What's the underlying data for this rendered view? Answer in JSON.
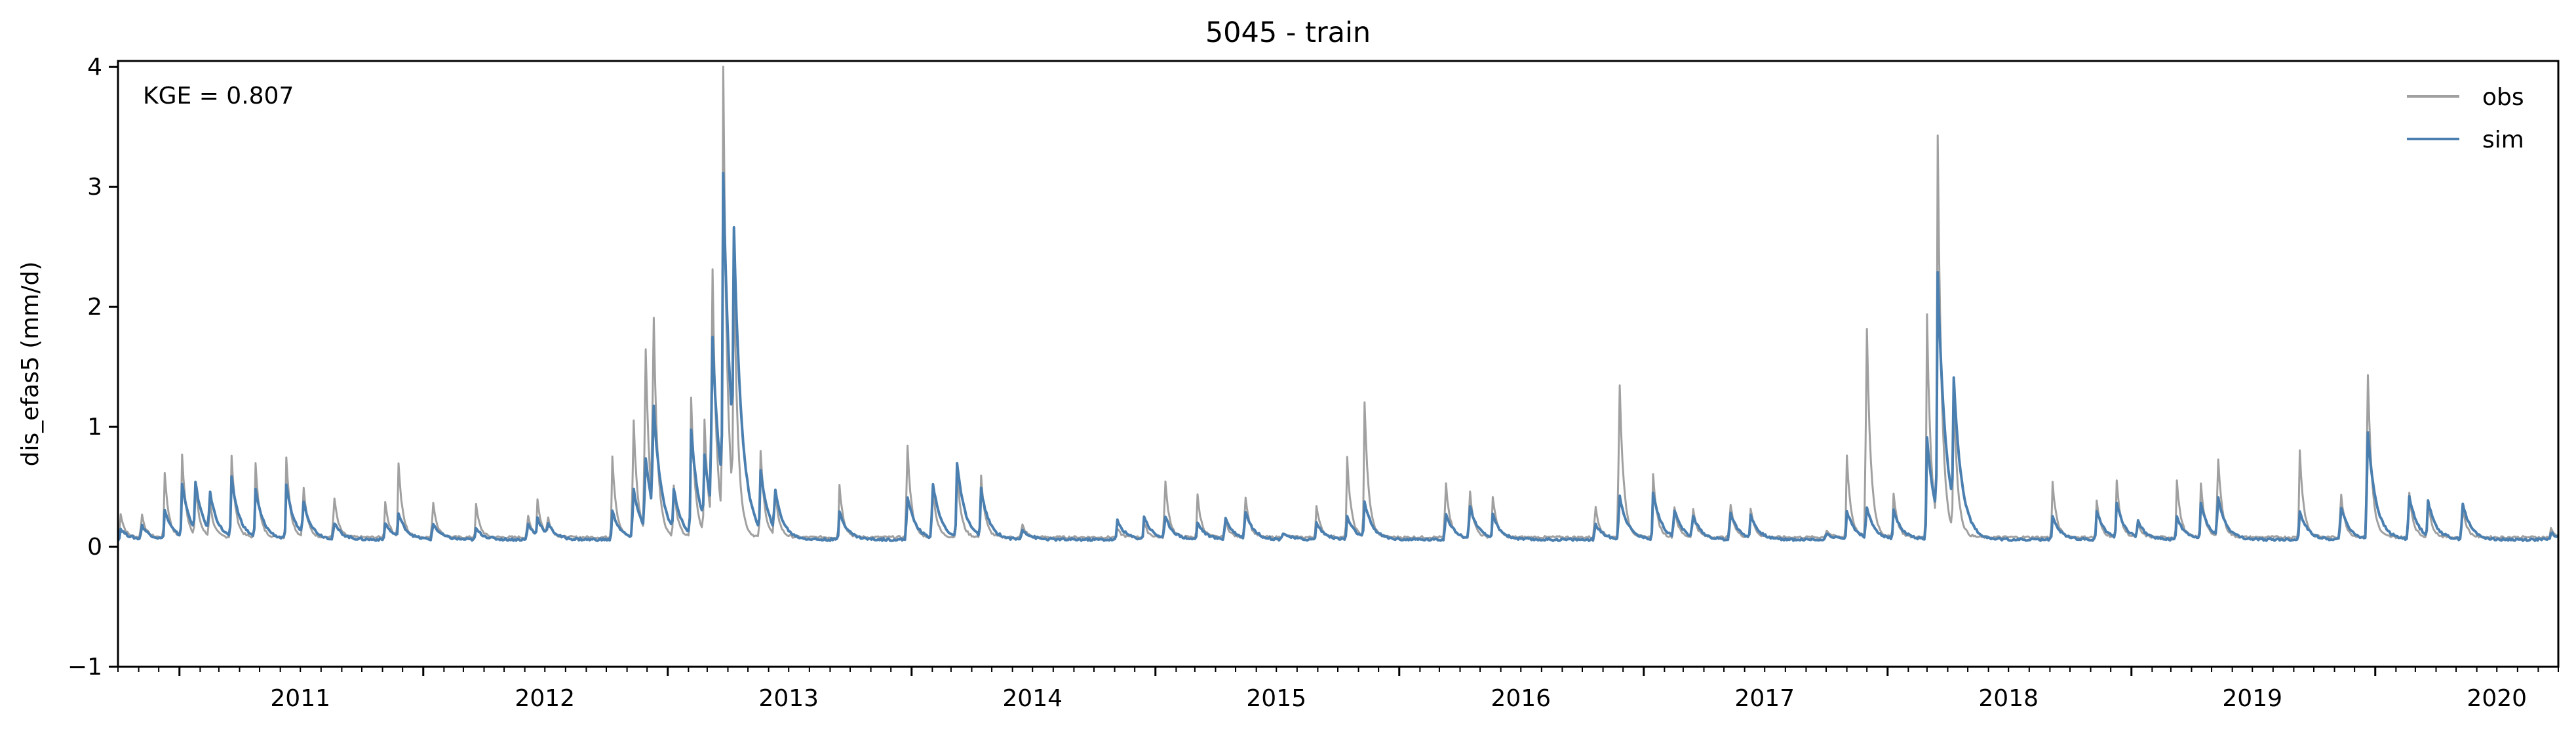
{
  "chart_data": {
    "type": "line",
    "title": "5045 - train",
    "ylabel": "dis_efas5 (mm/d)",
    "xlabel": "",
    "ylim": [
      -1,
      4.05
    ],
    "xlim": [
      "2010-10-01",
      "2020-10-01"
    ],
    "yticks": [
      -1,
      0,
      1,
      2,
      3,
      4
    ],
    "xtick_labels": [
      "2011",
      "2012",
      "2013",
      "2014",
      "2015",
      "2016",
      "2017",
      "2018",
      "2019",
      "2020"
    ],
    "annotation": "KGE = 0.807",
    "legend_position": "top-right",
    "grid": false,
    "series": [
      {
        "name": "obs",
        "color": "#a0a0a0",
        "baseline": 0.08,
        "peaks": [
          [
            "2010-10-05",
            0.28
          ],
          [
            "2010-11-05",
            0.3
          ],
          [
            "2010-12-10",
            0.62
          ],
          [
            "2011-01-05",
            0.76
          ],
          [
            "2011-01-25",
            0.5
          ],
          [
            "2011-02-15",
            0.4
          ],
          [
            "2011-03-20",
            0.76
          ],
          [
            "2011-04-25",
            0.7
          ],
          [
            "2011-06-10",
            0.75
          ],
          [
            "2011-07-05",
            0.55
          ],
          [
            "2011-08-20",
            0.47
          ],
          [
            "2011-11-05",
            0.38
          ],
          [
            "2011-11-25",
            0.69
          ],
          [
            "2012-01-15",
            0.42
          ],
          [
            "2012-03-20",
            0.35
          ],
          [
            "2012-06-05",
            0.28
          ],
          [
            "2012-06-20",
            0.38
          ],
          [
            "2012-07-05",
            0.25
          ],
          [
            "2012-10-10",
            0.76
          ],
          [
            "2012-11-10",
            1.22
          ],
          [
            "2012-11-28",
            1.88
          ],
          [
            "2012-12-10",
            1.99
          ],
          [
            "2013-01-10",
            0.5
          ],
          [
            "2013-02-05",
            1.24
          ],
          [
            "2013-02-25",
            1.02
          ],
          [
            "2013-03-08",
            2.55
          ],
          [
            "2013-03-25",
            3.85
          ],
          [
            "2013-04-10",
            2.16
          ],
          [
            "2013-05-20",
            0.8
          ],
          [
            "2013-06-10",
            0.5
          ],
          [
            "2013-09-15",
            0.52
          ],
          [
            "2013-12-25",
            0.97
          ],
          [
            "2014-02-01",
            0.55
          ],
          [
            "2014-03-10",
            0.65
          ],
          [
            "2014-04-15",
            0.6
          ],
          [
            "2014-06-15",
            0.2
          ],
          [
            "2014-11-05",
            0.15
          ],
          [
            "2014-12-15",
            0.2
          ],
          [
            "2015-01-15",
            0.62
          ],
          [
            "2015-03-05",
            0.43
          ],
          [
            "2015-04-15",
            0.25
          ],
          [
            "2015-05-15",
            0.48
          ],
          [
            "2015-07-10",
            0.12
          ],
          [
            "2015-08-30",
            0.35
          ],
          [
            "2015-10-15",
            0.74
          ],
          [
            "2015-11-10",
            1.2
          ],
          [
            "2016-03-10",
            0.6
          ],
          [
            "2016-04-15",
            0.52
          ],
          [
            "2016-05-20",
            0.42
          ],
          [
            "2016-10-20",
            0.38
          ],
          [
            "2016-11-25",
            1.57
          ],
          [
            "2017-01-15",
            0.6
          ],
          [
            "2017-02-15",
            0.38
          ],
          [
            "2017-03-15",
            0.35
          ],
          [
            "2017-05-10",
            0.4
          ],
          [
            "2017-06-10",
            0.32
          ],
          [
            "2017-10-01",
            0.15
          ],
          [
            "2017-11-01",
            0.76
          ],
          [
            "2017-11-30",
            2.12
          ],
          [
            "2018-01-10",
            0.45
          ],
          [
            "2018-03-01",
            1.94
          ],
          [
            "2018-03-17",
            3.3
          ],
          [
            "2018-04-10",
            1.24
          ],
          [
            "2018-09-05",
            0.54
          ],
          [
            "2018-11-10",
            0.38
          ],
          [
            "2018-12-10",
            0.55
          ],
          [
            "2019-01-10",
            0.2
          ],
          [
            "2019-03-10",
            0.55
          ],
          [
            "2019-04-15",
            0.53
          ],
          [
            "2019-05-10",
            0.85
          ],
          [
            "2019-09-10",
            0.8
          ],
          [
            "2019-11-10",
            0.5
          ],
          [
            "2019-12-20",
            1.68
          ],
          [
            "2020-02-20",
            0.52
          ],
          [
            "2020-03-20",
            0.38
          ],
          [
            "2020-05-10",
            0.38
          ],
          [
            "2020-09-20",
            0.15
          ]
        ]
      },
      {
        "name": "sim",
        "color": "#4a7fb0",
        "baseline": 0.06,
        "peaks": [
          [
            "2010-10-05",
            0.15
          ],
          [
            "2010-11-05",
            0.18
          ],
          [
            "2010-12-10",
            0.3
          ],
          [
            "2011-01-05",
            0.5
          ],
          [
            "2011-01-25",
            0.45
          ],
          [
            "2011-02-15",
            0.4
          ],
          [
            "2011-03-20",
            0.55
          ],
          [
            "2011-04-25",
            0.45
          ],
          [
            "2011-06-10",
            0.5
          ],
          [
            "2011-07-05",
            0.35
          ],
          [
            "2011-08-20",
            0.2
          ],
          [
            "2011-11-05",
            0.2
          ],
          [
            "2011-11-25",
            0.25
          ],
          [
            "2012-01-15",
            0.2
          ],
          [
            "2012-03-20",
            0.15
          ],
          [
            "2012-06-05",
            0.2
          ],
          [
            "2012-06-20",
            0.2
          ],
          [
            "2012-07-05",
            0.15
          ],
          [
            "2012-10-10",
            0.3
          ],
          [
            "2012-11-10",
            0.5
          ],
          [
            "2012-11-28",
            0.7
          ],
          [
            "2012-12-10",
            0.99
          ],
          [
            "2013-01-10",
            0.4
          ],
          [
            "2013-02-05",
            0.93
          ],
          [
            "2013-02-25",
            0.6
          ],
          [
            "2013-03-08",
            1.6
          ],
          [
            "2013-03-25",
            2.67
          ],
          [
            "2013-04-10",
            1.85
          ],
          [
            "2013-05-20",
            0.55
          ],
          [
            "2013-06-10",
            0.4
          ],
          [
            "2013-09-15",
            0.3
          ],
          [
            "2013-12-25",
            0.45
          ],
          [
            "2014-02-01",
            0.55
          ],
          [
            "2014-03-10",
            0.68
          ],
          [
            "2014-04-15",
            0.45
          ],
          [
            "2014-06-15",
            0.15
          ],
          [
            "2014-11-05",
            0.22
          ],
          [
            "2014-12-15",
            0.25
          ],
          [
            "2015-01-15",
            0.25
          ],
          [
            "2015-03-05",
            0.2
          ],
          [
            "2015-04-15",
            0.25
          ],
          [
            "2015-05-15",
            0.3
          ],
          [
            "2015-07-10",
            0.12
          ],
          [
            "2015-08-30",
            0.2
          ],
          [
            "2015-10-15",
            0.25
          ],
          [
            "2015-11-10",
            0.35
          ],
          [
            "2016-03-10",
            0.3
          ],
          [
            "2016-04-15",
            0.35
          ],
          [
            "2016-05-20",
            0.25
          ],
          [
            "2016-10-20",
            0.2
          ],
          [
            "2016-11-25",
            0.45
          ],
          [
            "2017-01-15",
            0.45
          ],
          [
            "2017-02-15",
            0.3
          ],
          [
            "2017-03-15",
            0.25
          ],
          [
            "2017-05-10",
            0.3
          ],
          [
            "2017-06-10",
            0.25
          ],
          [
            "2017-10-01",
            0.12
          ],
          [
            "2017-11-01",
            0.3
          ],
          [
            "2017-11-30",
            0.32
          ],
          [
            "2018-01-10",
            0.3
          ],
          [
            "2018-03-01",
            0.9
          ],
          [
            "2018-03-17",
            2.06
          ],
          [
            "2018-04-10",
            1.1
          ],
          [
            "2018-09-05",
            0.25
          ],
          [
            "2018-11-10",
            0.3
          ],
          [
            "2018-12-10",
            0.35
          ],
          [
            "2019-01-10",
            0.2
          ],
          [
            "2019-03-10",
            0.25
          ],
          [
            "2019-04-15",
            0.35
          ],
          [
            "2019-05-10",
            0.4
          ],
          [
            "2019-09-10",
            0.3
          ],
          [
            "2019-11-10",
            0.35
          ],
          [
            "2019-12-20",
            1.02
          ],
          [
            "2020-02-20",
            0.45
          ],
          [
            "2020-03-20",
            0.35
          ],
          [
            "2020-05-10",
            0.38
          ],
          [
            "2020-09-20",
            0.12
          ]
        ]
      }
    ]
  }
}
